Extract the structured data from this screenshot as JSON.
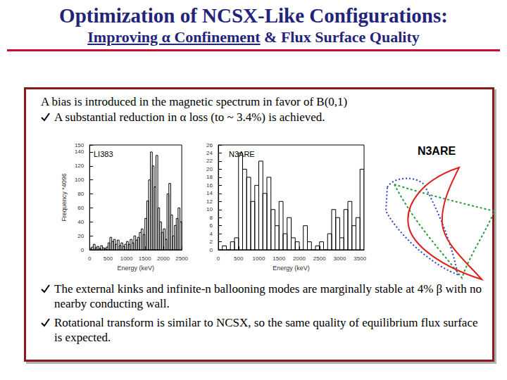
{
  "title": "Optimization of NCSX-Like Configurations:",
  "subtitle_underlined": "Improving α Confinement",
  "subtitle_rest": "& Flux Surface Quality",
  "intro": "A bias is introduced in the magnetic spectrum in favor of B(0,1)",
  "top_bullets": [
    "A substantial reduction in α loss (to ~ 3.4%) is achieved."
  ],
  "bottom_bullets": [
    "The external kinks and infinite-n ballooning modes are marginally stable at 4% β with no nearby conducting wall.",
    "Rotational transform is similar to NCSX, so the same quality of equilibrium flux surface is expected."
  ],
  "figure_label": "N3ARE",
  "chart_data": [
    {
      "type": "histogram",
      "title": "LI383",
      "x_label": "Energy (keV)",
      "y_label": "Frequency *4096",
      "bins": [
        0,
        50,
        100,
        150,
        200,
        250,
        300,
        350,
        400,
        450,
        500,
        550,
        600,
        650,
        700,
        750,
        800,
        850,
        900,
        950,
        1000,
        1050,
        1100,
        1150,
        1200,
        1250,
        1300,
        1350,
        1400,
        1450,
        1500,
        1550,
        1600,
        1650,
        1700,
        1750,
        1800,
        1850,
        1900,
        1950,
        2000,
        2050,
        2100,
        2150,
        2200,
        2250,
        2300,
        2350,
        2400,
        2450,
        2500
      ],
      "counts": [
        2,
        4,
        8,
        3,
        5,
        2,
        6,
        3,
        2,
        4,
        10,
        18,
        12,
        15,
        8,
        14,
        6,
        10,
        5,
        8,
        12,
        8,
        15,
        10,
        20,
        14,
        18,
        25,
        30,
        22,
        45,
        70,
        100,
        140,
        120,
        90,
        135,
        60,
        40,
        25,
        30,
        15,
        80,
        95,
        50,
        20,
        35,
        45,
        60,
        40
      ],
      "color": "#000000",
      "xlim": [
        0,
        2500
      ],
      "xticks": [
        0,
        500,
        1000,
        1500,
        2000,
        2500
      ],
      "ylim": [
        0,
        150
      ],
      "yticks": [
        0,
        20,
        40,
        60,
        80,
        100,
        120,
        140
      ],
      "grid": false
    },
    {
      "type": "histogram",
      "title": "N3ARE",
      "x_label": "Energy (keV)",
      "bins": [
        0,
        100,
        200,
        300,
        400,
        500,
        600,
        700,
        800,
        900,
        1000,
        1100,
        1200,
        1300,
        1400,
        1500,
        1600,
        1700,
        1800,
        1900,
        2000,
        2100,
        2200,
        2300,
        2400,
        2500,
        2600,
        2700,
        2800,
        2900,
        3000,
        3100,
        3200,
        3300,
        3400,
        3500,
        3600
      ],
      "counts": [
        0,
        1,
        0,
        2,
        3,
        24,
        20,
        18,
        12,
        16,
        22,
        14,
        18,
        10,
        6,
        12,
        4,
        8,
        3,
        2,
        0,
        6,
        2,
        0,
        1,
        2,
        0,
        4,
        10,
        8,
        3,
        10,
        12,
        6,
        8,
        20
      ],
      "color": "#000000",
      "xlim": [
        0,
        3600
      ],
      "xticks": [
        0,
        500,
        1000,
        1500,
        2000,
        2500,
        3000,
        3500
      ],
      "ylim": [
        0,
        26
      ],
      "yticks": [
        0,
        2,
        4,
        6,
        8,
        10,
        12,
        14,
        16,
        18,
        20,
        22,
        24,
        26
      ],
      "grid": false
    }
  ]
}
